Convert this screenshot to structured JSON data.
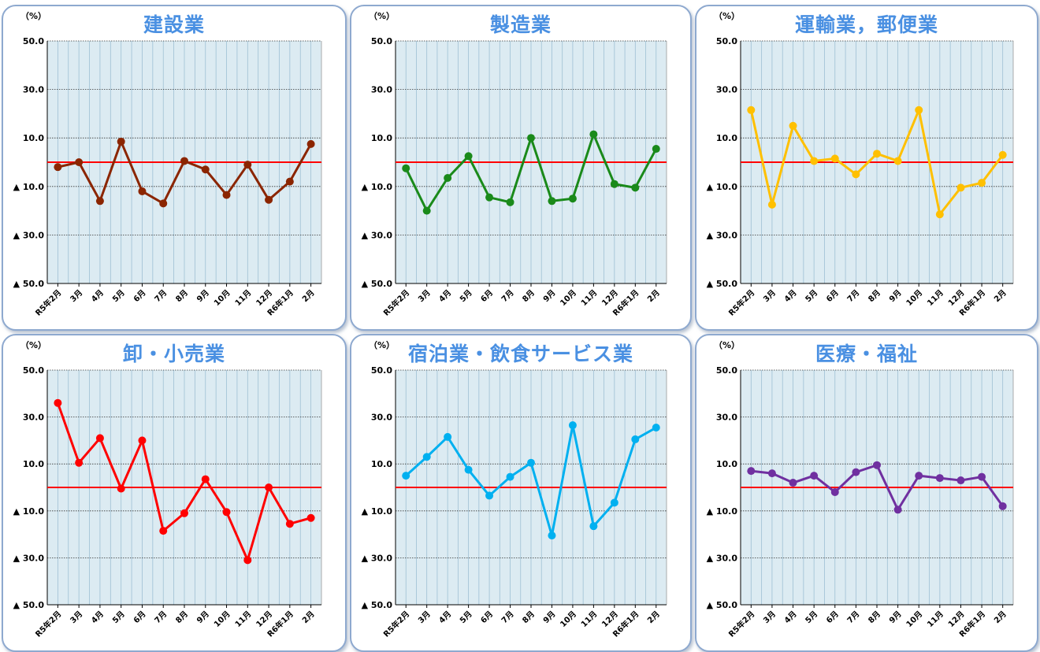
{
  "chart_data": [
    {
      "type": "line",
      "title": "建設業",
      "unit_label": "（%）",
      "color": "#8b2500",
      "reference_line": {
        "value": 0,
        "color": "#ff0000"
      },
      "ylim": [
        -50,
        50
      ],
      "y_ticks": [
        "50.0",
        "30.0",
        "10.0",
        "▲ 10.0",
        "▲ 30.0",
        "▲ 50.0"
      ],
      "categories": [
        "R5年2月",
        "3月",
        "4月",
        "5月",
        "6月",
        "7月",
        "8月",
        "9月",
        "10月",
        "11月",
        "12月",
        "R6年1月",
        "2月"
      ],
      "values": [
        -2,
        0,
        -16,
        8.5,
        -12,
        -17,
        0.5,
        -3,
        -13.5,
        -1,
        -15.5,
        -8,
        7.5
      ]
    },
    {
      "type": "line",
      "title": "製造業",
      "unit_label": "（%）",
      "color": "#1a8a1a",
      "reference_line": {
        "value": 0,
        "color": "#ff0000"
      },
      "ylim": [
        -50,
        50
      ],
      "y_ticks": [
        "50.0",
        "30.0",
        "10.0",
        "▲ 10.0",
        "▲ 30.0",
        "▲ 50.0"
      ],
      "categories": [
        "R5年2月",
        "3月",
        "4月",
        "5月",
        "6月",
        "7月",
        "8月",
        "9月",
        "10月",
        "11月",
        "12月",
        "R6年1月",
        "2月"
      ],
      "values": [
        -2.5,
        -20,
        -6.5,
        2.5,
        -14.5,
        -16.5,
        10,
        -16,
        -15,
        11.5,
        -9,
        -10.5,
        5.5
      ]
    },
    {
      "type": "line",
      "title": "運輸業，郵便業",
      "unit_label": "（%）",
      "color": "#ffc000",
      "reference_line": {
        "value": 0,
        "color": "#ff0000"
      },
      "ylim": [
        -50,
        50
      ],
      "y_ticks": [
        "50.0",
        "30.0",
        "10.0",
        "▲ 10.0",
        "▲ 30.0",
        "▲ 50.0"
      ],
      "categories": [
        "R5年2月",
        "3月",
        "4月",
        "5月",
        "6月",
        "7月",
        "8月",
        "9月",
        "10月",
        "11月",
        "12月",
        "R6年1月",
        "2月"
      ],
      "values": [
        21.5,
        -17.5,
        15,
        0.5,
        1.5,
        -5,
        3.5,
        0.5,
        21.5,
        -21.5,
        -10.5,
        -8.5,
        3
      ]
    },
    {
      "type": "line",
      "title": "卸・小売業",
      "unit_label": "（%）",
      "color": "#ff0000",
      "reference_line": {
        "value": 0,
        "color": "#ff0000"
      },
      "ylim": [
        -50,
        50
      ],
      "y_ticks": [
        "50.0",
        "30.0",
        "10.0",
        "▲ 10.0",
        "▲ 30.0",
        "▲ 50.0"
      ],
      "categories": [
        "R5年2月",
        "3月",
        "4月",
        "5月",
        "6月",
        "7月",
        "8月",
        "9月",
        "10月",
        "11月",
        "12月",
        "R6年1月",
        "2月"
      ],
      "values": [
        36,
        10.5,
        21,
        -0.5,
        20,
        -18.5,
        -11,
        3.5,
        -10.5,
        -31,
        0,
        -15.5,
        -13
      ]
    },
    {
      "type": "line",
      "title": "宿泊業・飲食サービス業",
      "unit_label": "（%）",
      "color": "#00b0f0",
      "reference_line": {
        "value": 0,
        "color": "#ff0000"
      },
      "ylim": [
        -50,
        50
      ],
      "y_ticks": [
        "50.0",
        "30.0",
        "10.0",
        "▲ 10.0",
        "▲ 30.0",
        "▲ 50.0"
      ],
      "categories": [
        "R5年2月",
        "3月",
        "4月",
        "5月",
        "6月",
        "7月",
        "8月",
        "9月",
        "10月",
        "11月",
        "12月",
        "R6年1月",
        "2月"
      ],
      "values": [
        5,
        13,
        21.5,
        7.5,
        -3.5,
        4.5,
        10.5,
        -20.5,
        26.5,
        -16.5,
        -6.5,
        20.5,
        25.5
      ]
    },
    {
      "type": "line",
      "title": "医療・福祉",
      "unit_label": "（%）",
      "color": "#7030a0",
      "reference_line": {
        "value": 0,
        "color": "#ff0000"
      },
      "ylim": [
        -50,
        50
      ],
      "y_ticks": [
        "50.0",
        "30.0",
        "10.0",
        "▲ 10.0",
        "▲ 30.0",
        "▲ 50.0"
      ],
      "categories": [
        "R5年2月",
        "3月",
        "4月",
        "5月",
        "6月",
        "7月",
        "8月",
        "9月",
        "10月",
        "11月",
        "12月",
        "R6年1月",
        "2月"
      ],
      "values": [
        7,
        6,
        2,
        5,
        -2,
        6.5,
        9.5,
        -9.5,
        5,
        4,
        3,
        4.5,
        -8
      ]
    }
  ]
}
